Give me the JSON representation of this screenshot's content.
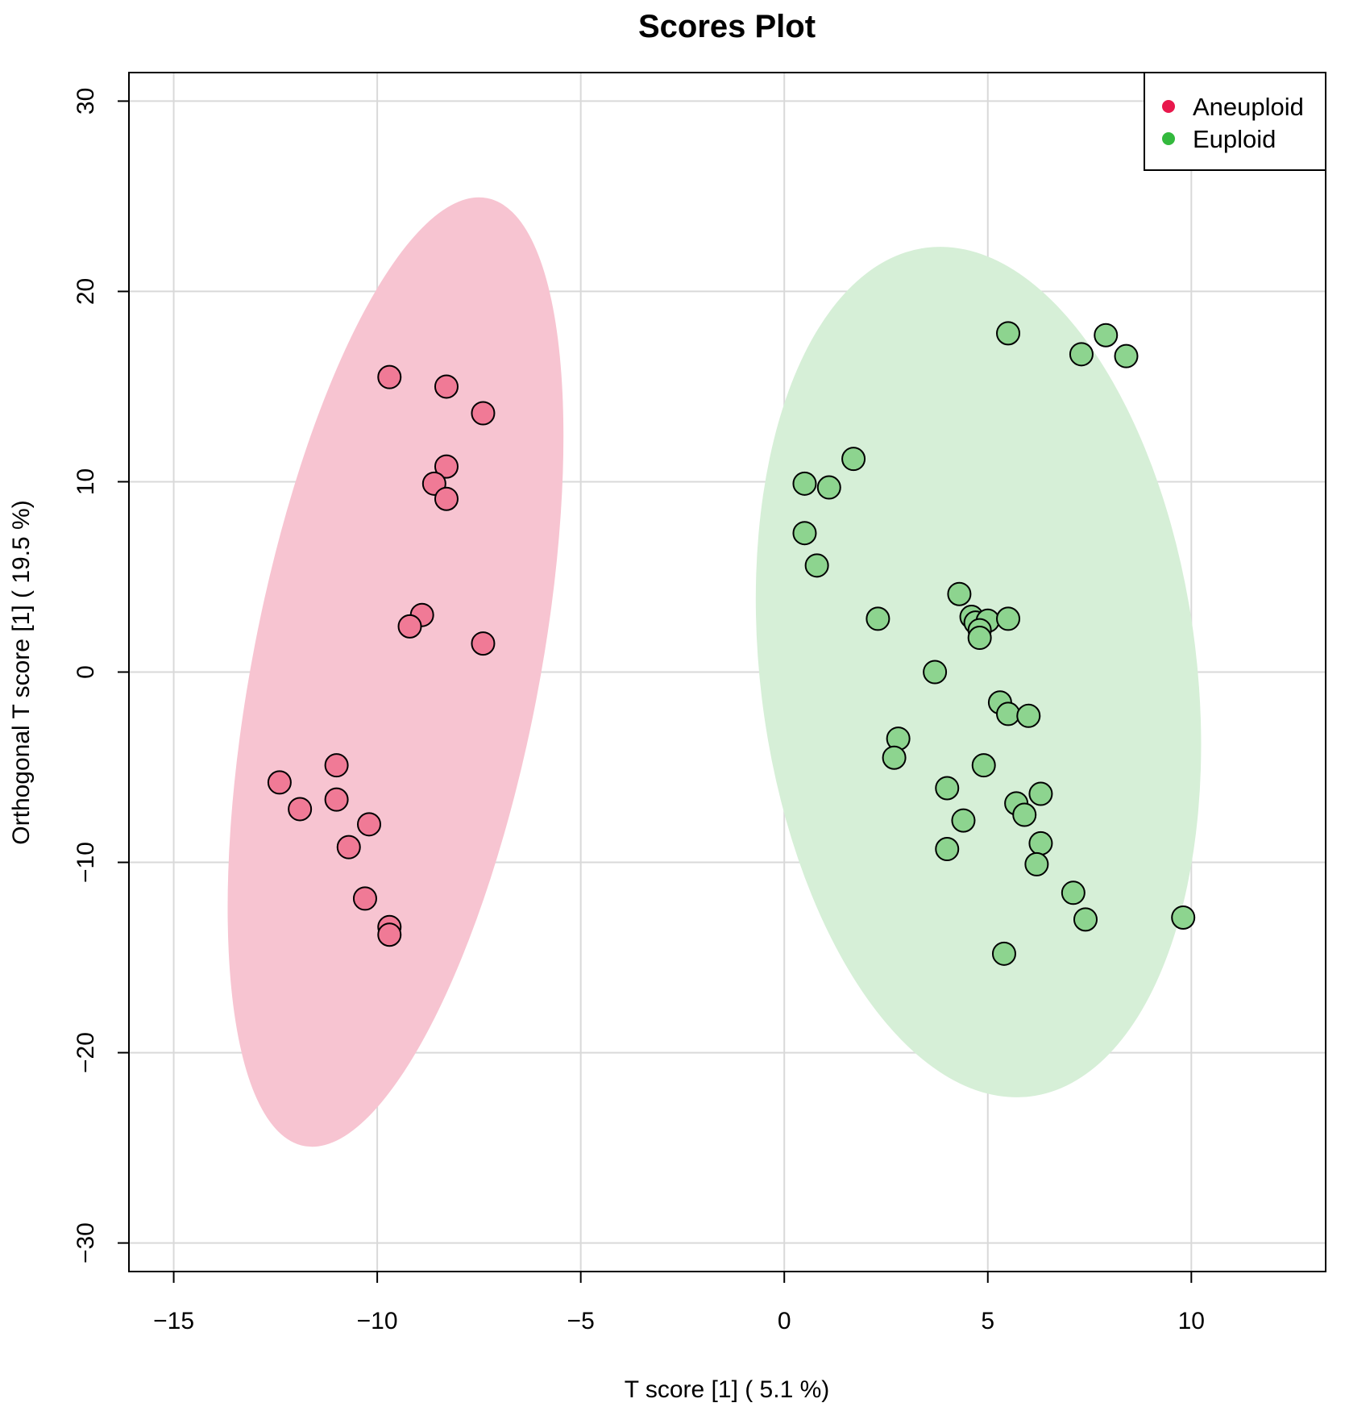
{
  "chart_data": {
    "type": "scatter",
    "title": "Scores Plot",
    "xlabel": "T score [1] ( 5.1 %)",
    "ylabel": "Orthogonal T score [1] ( 19.5 %)",
    "xlim": [
      -16.1,
      13.3
    ],
    "ylim": [
      -31.5,
      31.5
    ],
    "xticks": [
      -15,
      -10,
      -5,
      0,
      5,
      10
    ],
    "yticks": [
      -30,
      -20,
      -10,
      0,
      10,
      20,
      30
    ],
    "xtick_labels": [
      "−15",
      "−10",
      "−5",
      "0",
      "5",
      "10"
    ],
    "ytick_labels": [
      "−30",
      "−20",
      "−10",
      "0",
      "10",
      "20",
      "30"
    ],
    "grid": true,
    "legend_position": "top-right",
    "series": [
      {
        "name": "Aneuploid",
        "color": "#e8184c",
        "fill": "#f07a96",
        "ellipse_fill": "#f7c4d1",
        "ellipse": {
          "center": [
            -9.55,
            0.0
          ],
          "major_tip": [
            -7.3,
            24.9
          ],
          "minor_tip": [
            -6.06,
            1.0
          ]
        },
        "points": [
          [
            -9.7,
            15.5
          ],
          [
            -8.3,
            15.0
          ],
          [
            -7.4,
            13.6
          ],
          [
            -8.3,
            10.8
          ],
          [
            -8.6,
            9.9
          ],
          [
            -8.3,
            9.1
          ],
          [
            -8.9,
            3.0
          ],
          [
            -9.2,
            2.4
          ],
          [
            -7.4,
            1.5
          ],
          [
            -11.0,
            -4.9
          ],
          [
            -12.4,
            -5.8
          ],
          [
            -11.0,
            -6.7
          ],
          [
            -11.9,
            -7.2
          ],
          [
            -10.2,
            -8.0
          ],
          [
            -10.7,
            -9.2
          ],
          [
            -10.3,
            -11.9
          ],
          [
            -9.7,
            -13.4
          ],
          [
            -9.7,
            -13.8
          ]
        ]
      },
      {
        "name": "Euploid",
        "color": "#33b93d",
        "fill": "#8dd48f",
        "ellipse_fill": "#d6efd7",
        "ellipse": {
          "center": [
            4.77,
            0.0
          ],
          "major_tip": [
            3.5,
            22.3
          ],
          "minor_tip": [
            10.11,
            -1.0
          ]
        },
        "points": [
          [
            5.5,
            17.8
          ],
          [
            7.9,
            17.7
          ],
          [
            7.3,
            16.7
          ],
          [
            8.4,
            16.6
          ],
          [
            1.7,
            11.2
          ],
          [
            0.5,
            9.9
          ],
          [
            1.1,
            9.7
          ],
          [
            0.5,
            7.3
          ],
          [
            0.8,
            5.6
          ],
          [
            4.3,
            4.1
          ],
          [
            2.3,
            2.8
          ],
          [
            4.6,
            2.9
          ],
          [
            4.7,
            2.6
          ],
          [
            5.0,
            2.7
          ],
          [
            5.5,
            2.8
          ],
          [
            4.8,
            2.2
          ],
          [
            4.8,
            1.8
          ],
          [
            3.7,
            0.0
          ],
          [
            5.3,
            -1.6
          ],
          [
            5.5,
            -2.2
          ],
          [
            6.0,
            -2.3
          ],
          [
            2.8,
            -3.5
          ],
          [
            2.7,
            -4.5
          ],
          [
            4.9,
            -4.9
          ],
          [
            4.0,
            -6.1
          ],
          [
            6.3,
            -6.4
          ],
          [
            5.7,
            -6.9
          ],
          [
            5.9,
            -7.5
          ],
          [
            4.4,
            -7.8
          ],
          [
            6.3,
            -9.0
          ],
          [
            4.0,
            -9.3
          ],
          [
            6.2,
            -10.1
          ],
          [
            7.1,
            -11.6
          ],
          [
            7.4,
            -13.0
          ],
          [
            9.8,
            -12.9
          ],
          [
            5.4,
            -14.8
          ]
        ]
      }
    ]
  }
}
